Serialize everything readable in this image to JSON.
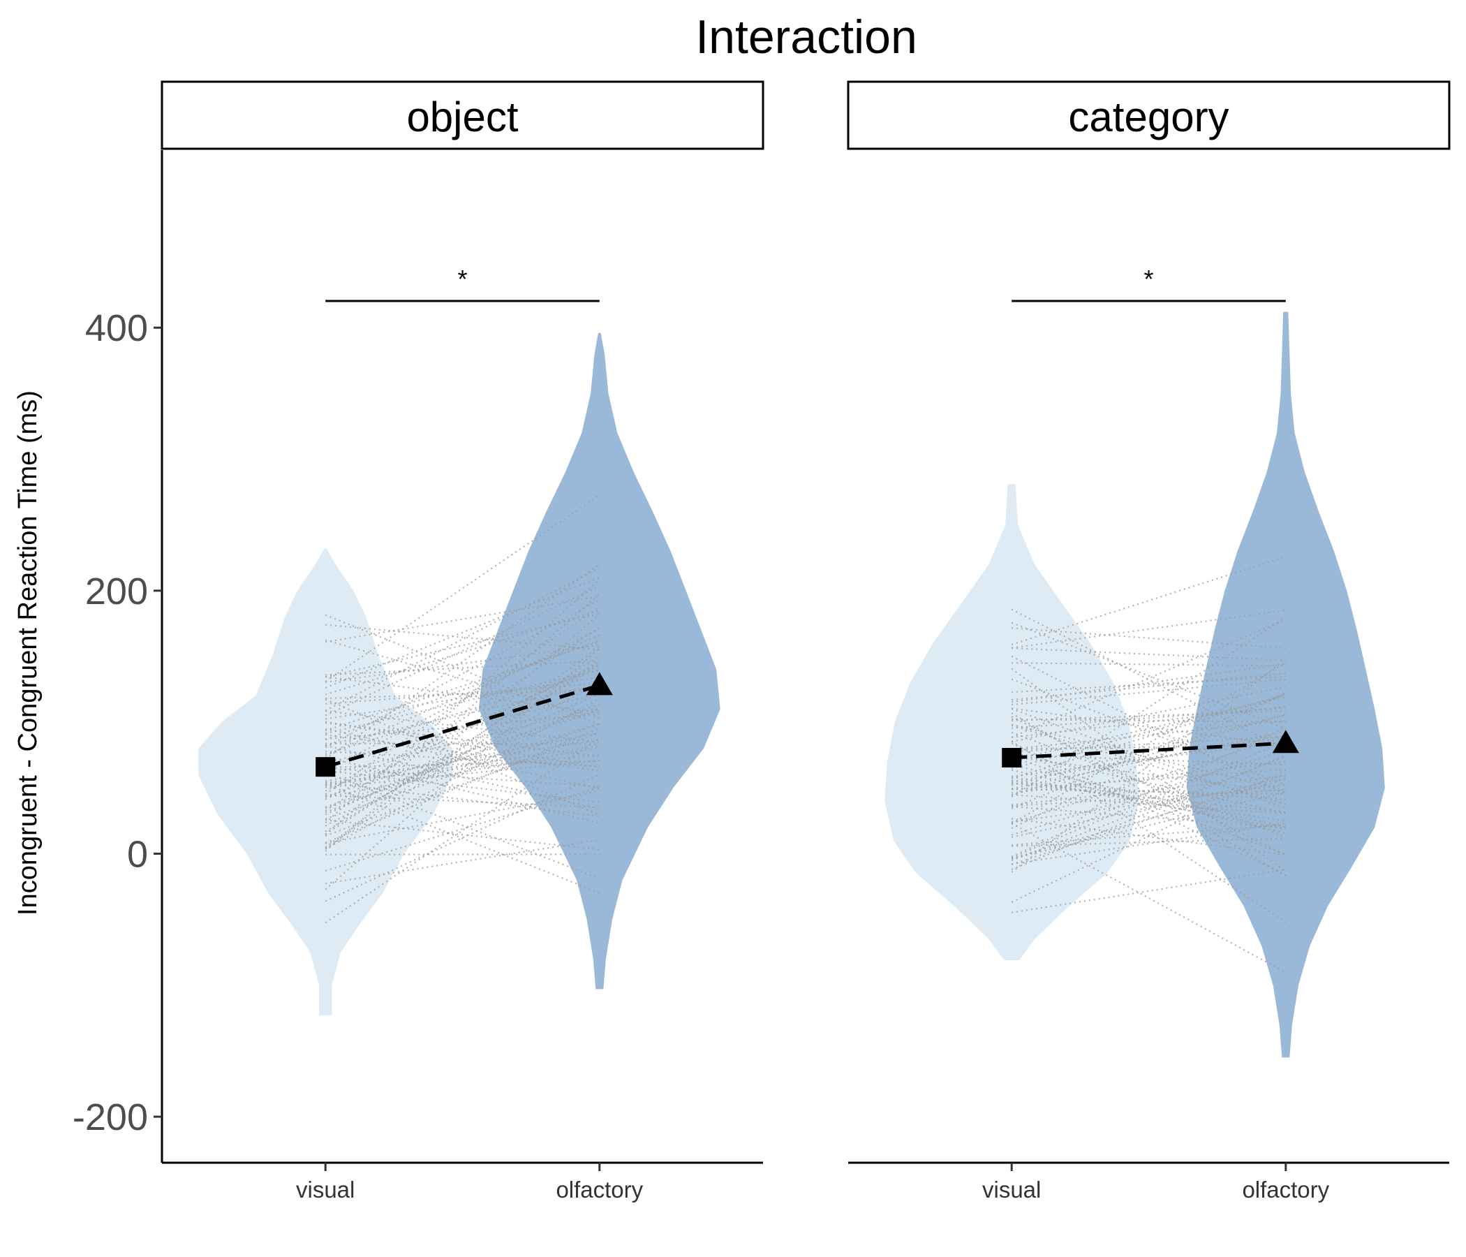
{
  "chart_data": {
    "type": "violin",
    "title": "Interaction",
    "ylabel": "Incongruent - Congruent Reaction Time (ms)",
    "xlabel": "",
    "ylim": [
      -235,
      535
    ],
    "yticks": [
      -200,
      0,
      200,
      400
    ],
    "grid": false,
    "categories": [
      "visual",
      "olfactory"
    ],
    "colors": {
      "visual": "#deebf4",
      "olfactory": "#9ab9d9",
      "mean": "#000000",
      "lines": "#9a9a9a"
    },
    "panels": [
      {
        "label": "object",
        "significance": "*",
        "groups": [
          {
            "name": "visual",
            "mean": 66,
            "marker": "square",
            "min": -123,
            "max": 232,
            "density": [
              [
                -123,
                0.05
              ],
              [
                -100,
                0.05
              ],
              [
                -75,
                0.12
              ],
              [
                -55,
                0.26
              ],
              [
                -30,
                0.45
              ],
              [
                0,
                0.62
              ],
              [
                30,
                0.85
              ],
              [
                60,
                1.0
              ],
              [
                80,
                1.0
              ],
              [
                100,
                0.82
              ],
              [
                120,
                0.55
              ],
              [
                150,
                0.42
              ],
              [
                180,
                0.32
              ],
              [
                200,
                0.22
              ],
              [
                220,
                0.08
              ],
              [
                232,
                0.01
              ]
            ]
          },
          {
            "name": "olfactory",
            "mean": 128,
            "marker": "triangle",
            "min": -103,
            "max": 396,
            "density": [
              [
                -103,
                0.03
              ],
              [
                -80,
                0.05
              ],
              [
                -50,
                0.1
              ],
              [
                -20,
                0.18
              ],
              [
                20,
                0.38
              ],
              [
                50,
                0.58
              ],
              [
                80,
                0.82
              ],
              [
                110,
                0.95
              ],
              [
                140,
                0.92
              ],
              [
                170,
                0.8
              ],
              [
                200,
                0.68
              ],
              [
                230,
                0.56
              ],
              [
                260,
                0.42
              ],
              [
                290,
                0.27
              ],
              [
                320,
                0.14
              ],
              [
                350,
                0.07
              ],
              [
                380,
                0.04
              ],
              [
                396,
                0.01
              ]
            ]
          }
        ]
      },
      {
        "label": "category",
        "significance": "*",
        "groups": [
          {
            "name": "visual",
            "mean": 73,
            "marker": "square",
            "min": -81,
            "max": 281,
            "density": [
              [
                -81,
                0.06
              ],
              [
                -65,
                0.18
              ],
              [
                -40,
                0.45
              ],
              [
                -15,
                0.75
              ],
              [
                10,
                0.93
              ],
              [
                40,
                1.0
              ],
              [
                70,
                0.98
              ],
              [
                100,
                0.92
              ],
              [
                130,
                0.8
              ],
              [
                160,
                0.62
              ],
              [
                190,
                0.4
              ],
              [
                220,
                0.18
              ],
              [
                250,
                0.05
              ],
              [
                281,
                0.03
              ]
            ]
          },
          {
            "name": "olfactory",
            "mean": 84,
            "marker": "triangle",
            "min": -155,
            "max": 412,
            "density": [
              [
                -155,
                0.03
              ],
              [
                -130,
                0.05
              ],
              [
                -100,
                0.1
              ],
              [
                -70,
                0.19
              ],
              [
                -40,
                0.33
              ],
              [
                -10,
                0.52
              ],
              [
                20,
                0.7
              ],
              [
                50,
                0.78
              ],
              [
                80,
                0.76
              ],
              [
                110,
                0.7
              ],
              [
                140,
                0.63
              ],
              [
                170,
                0.56
              ],
              [
                200,
                0.48
              ],
              [
                230,
                0.38
              ],
              [
                260,
                0.26
              ],
              [
                290,
                0.15
              ],
              [
                320,
                0.07
              ],
              [
                350,
                0.04
              ],
              [
                380,
                0.03
              ],
              [
                412,
                0.02
              ]
            ]
          }
        ]
      }
    ]
  }
}
